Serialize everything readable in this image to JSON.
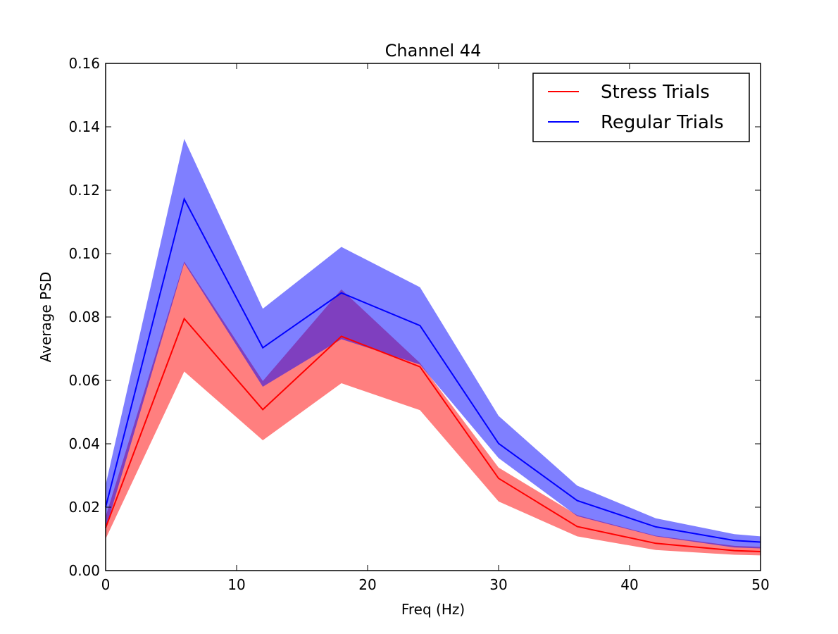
{
  "chart_data": {
    "type": "line",
    "title": "Channel 44",
    "xlabel": "Freq (Hz)",
    "ylabel": "Average PSD",
    "xlim": [
      0,
      50
    ],
    "ylim": [
      0,
      0.16
    ],
    "xticks": [
      0,
      10,
      20,
      30,
      40,
      50
    ],
    "xtick_labels": [
      "0",
      "10",
      "20",
      "30",
      "40",
      "50"
    ],
    "yticks": [
      0,
      0.02,
      0.04,
      0.06,
      0.08,
      0.1,
      0.12,
      0.14,
      0.16
    ],
    "ytick_labels": [
      "0.00",
      "0.02",
      "0.04",
      "0.06",
      "0.08",
      "0.10",
      "0.12",
      "0.14",
      "0.16"
    ],
    "grid": false,
    "legend_position": "top-right",
    "x": [
      0,
      6,
      12,
      18,
      24,
      30,
      36,
      42,
      48,
      50
    ],
    "series": [
      {
        "name": "Stress Trials",
        "color": "#ff0000",
        "band_color": "#ff0000",
        "values": [
          0.0135,
          0.0795,
          0.0508,
          0.0739,
          0.0643,
          0.0291,
          0.0139,
          0.0086,
          0.0063,
          0.006
        ],
        "lower": [
          0.01,
          0.0628,
          0.0411,
          0.0591,
          0.0506,
          0.0218,
          0.0108,
          0.0065,
          0.005,
          0.0048
        ],
        "upper": [
          0.017,
          0.0975,
          0.0598,
          0.0887,
          0.0655,
          0.0325,
          0.0175,
          0.011,
          0.0078,
          0.0075
        ]
      },
      {
        "name": "Regular Trials",
        "color": "#0000ff",
        "band_color": "#0000ff",
        "values": [
          0.02,
          0.1172,
          0.0703,
          0.0876,
          0.0773,
          0.0401,
          0.0221,
          0.0138,
          0.0095,
          0.009
        ],
        "lower": [
          0.013,
          0.097,
          0.058,
          0.073,
          0.065,
          0.0355,
          0.0172,
          0.0108,
          0.0073,
          0.007
        ],
        "upper": [
          0.027,
          0.1362,
          0.0826,
          0.1021,
          0.0894,
          0.0488,
          0.0268,
          0.0165,
          0.0115,
          0.0108
        ]
      }
    ]
  }
}
